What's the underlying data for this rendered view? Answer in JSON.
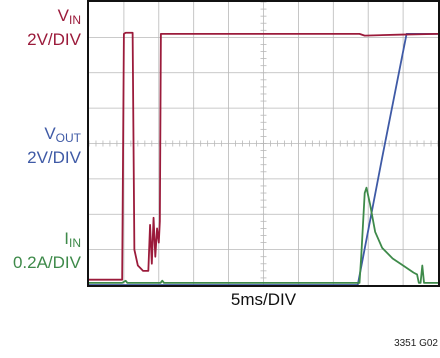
{
  "chart_data": {
    "type": "line",
    "title": "",
    "xlabel": "5ms/DIV",
    "ylabel": "",
    "x_divisions": 10,
    "y_divisions": 8,
    "x_unit": "div",
    "xlim": [
      0,
      10
    ],
    "ylim": [
      0,
      8
    ],
    "grid": true,
    "figure_number": "3351 G02",
    "channels": [
      {
        "key": "vin",
        "name": "VIN",
        "name_main": "V",
        "name_sub": "IN",
        "scale": "2V/DIV",
        "color": "#9b1b3b"
      },
      {
        "key": "vout",
        "name": "VOUT",
        "name_main": "V",
        "name_sub": "OUT",
        "scale": "2V/DIV",
        "color": "#3f5aa6"
      },
      {
        "key": "iin",
        "name": "IIN",
        "name_main": "I",
        "name_sub": "IN",
        "scale": "0.2A/DIV",
        "color": "#3e8a4a"
      }
    ],
    "series": [
      {
        "key": "vin",
        "points": [
          [
            0,
            0.15
          ],
          [
            0.95,
            0.15
          ],
          [
            1.0,
            7.1
          ],
          [
            1.05,
            7.13
          ],
          [
            1.25,
            7.13
          ],
          [
            1.3,
            1.0
          ],
          [
            1.4,
            0.55
          ],
          [
            1.55,
            0.4
          ],
          [
            1.7,
            0.4
          ],
          [
            1.75,
            1.7
          ],
          [
            1.8,
            0.6
          ],
          [
            1.85,
            1.9
          ],
          [
            1.9,
            0.8
          ],
          [
            1.95,
            1.6
          ],
          [
            2.0,
            1.2
          ],
          [
            2.03,
            1.8
          ],
          [
            2.06,
            7.1
          ],
          [
            2.1,
            7.1
          ],
          [
            7.75,
            7.1
          ],
          [
            7.9,
            7.05
          ],
          [
            9.0,
            7.08
          ],
          [
            10,
            7.1
          ]
        ]
      },
      {
        "key": "vout",
        "points": [
          [
            0,
            0
          ],
          [
            7.7,
            0
          ],
          [
            8.4,
            3.6
          ],
          [
            9.1,
            7.1
          ],
          [
            10,
            7.1
          ]
        ]
      },
      {
        "key": "iin",
        "points": [
          [
            0,
            0.06
          ],
          [
            0.95,
            0.06
          ],
          [
            1.05,
            0.12
          ],
          [
            1.1,
            0.06
          ],
          [
            2.05,
            0.06
          ],
          [
            2.1,
            0.12
          ],
          [
            2.15,
            0.06
          ],
          [
            7.75,
            0.06
          ],
          [
            7.8,
            0.8
          ],
          [
            7.9,
            2.6
          ],
          [
            7.95,
            2.75
          ],
          [
            8.05,
            2.3
          ],
          [
            8.2,
            1.5
          ],
          [
            8.4,
            1.05
          ],
          [
            8.7,
            0.75
          ],
          [
            9.0,
            0.55
          ],
          [
            9.3,
            0.35
          ],
          [
            9.4,
            0.3
          ],
          [
            9.45,
            0.06
          ],
          [
            9.5,
            0.06
          ],
          [
            9.55,
            0.55
          ],
          [
            9.6,
            0.06
          ],
          [
            10,
            0.06
          ]
        ]
      }
    ]
  }
}
